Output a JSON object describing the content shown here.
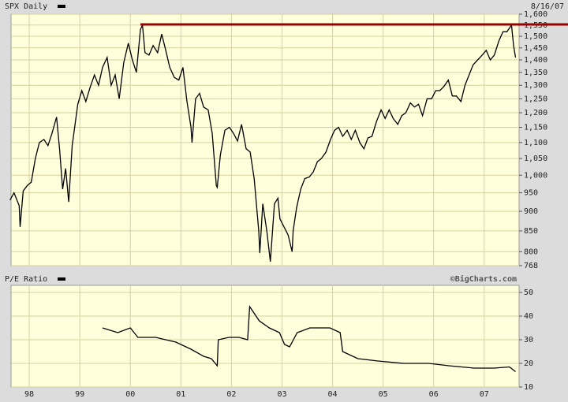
{
  "chart_data": [
    {
      "type": "line",
      "date": "8/16/07",
      "log_scale": true,
      "grid": true,
      "x": [
        1997.62,
        1997.7,
        1997.8,
        1997.82,
        1997.88,
        1997.96,
        1998.04,
        1998.12,
        1998.2,
        1998.29,
        1998.37,
        1998.45,
        1998.54,
        1998.6,
        1998.66,
        1998.72,
        1998.78,
        1998.85,
        1998.96,
        1999.04,
        1999.12,
        1999.2,
        1999.29,
        1999.37,
        1999.45,
        1999.54,
        1999.62,
        1999.7,
        1999.78,
        1999.87,
        1999.96,
        2000.04,
        2000.12,
        2000.2,
        2000.24,
        2000.29,
        2000.37,
        2000.45,
        2000.54,
        2000.62,
        2000.7,
        2000.78,
        2000.87,
        2000.96,
        2001.04,
        2001.12,
        2001.2,
        2001.22,
        2001.29,
        2001.37,
        2001.45,
        2001.54,
        2001.62,
        2001.7,
        2001.72,
        2001.78,
        2001.87,
        2001.96,
        2002.04,
        2002.12,
        2002.2,
        2002.29,
        2002.37,
        2002.45,
        2002.54,
        2002.56,
        2002.62,
        2002.7,
        2002.77,
        2002.85,
        2002.92,
        2002.96,
        2003.04,
        2003.12,
        2003.2,
        2003.22,
        2003.29,
        2003.37,
        2003.45,
        2003.54,
        2003.62,
        2003.7,
        2003.78,
        2003.87,
        2003.96,
        2004.04,
        2004.12,
        2004.2,
        2004.29,
        2004.37,
        2004.45,
        2004.54,
        2004.62,
        2004.7,
        2004.78,
        2004.87,
        2004.96,
        2005.04,
        2005.12,
        2005.2,
        2005.29,
        2005.37,
        2005.45,
        2005.54,
        2005.62,
        2005.7,
        2005.78,
        2005.87,
        2005.96,
        2006.04,
        2006.12,
        2006.2,
        2006.29,
        2006.37,
        2006.45,
        2006.54,
        2006.62,
        2006.7,
        2006.78,
        2006.87,
        2006.96,
        2007.04,
        2007.12,
        2007.2,
        2007.29,
        2007.37,
        2007.45,
        2007.54,
        2007.58,
        2007.62
      ],
      "series": [
        {
          "name": "SPX Daily",
          "color": "#000000",
          "values": [
            930,
            950,
            915,
            860,
            955,
            970,
            980,
            1050,
            1100,
            1110,
            1090,
            1130,
            1185,
            1080,
            960,
            1020,
            925,
            1090,
            1230,
            1280,
            1240,
            1290,
            1340,
            1300,
            1370,
            1410,
            1300,
            1340,
            1250,
            1390,
            1470,
            1400,
            1350,
            1530,
            1550,
            1430,
            1420,
            1460,
            1430,
            1510,
            1440,
            1370,
            1330,
            1320,
            1370,
            1240,
            1150,
            1100,
            1250,
            1270,
            1220,
            1210,
            1130,
            970,
            965,
            1060,
            1140,
            1150,
            1130,
            1105,
            1160,
            1080,
            1070,
            990,
            850,
            797,
            920,
            850,
            777,
            920,
            935,
            880,
            860,
            840,
            800,
            850,
            910,
            960,
            990,
            995,
            1010,
            1040,
            1050,
            1070,
            1110,
            1140,
            1150,
            1120,
            1140,
            1110,
            1140,
            1100,
            1080,
            1115,
            1120,
            1170,
            1210,
            1180,
            1210,
            1180,
            1160,
            1190,
            1200,
            1235,
            1220,
            1230,
            1190,
            1250,
            1250,
            1280,
            1280,
            1295,
            1320,
            1260,
            1260,
            1240,
            1300,
            1340,
            1380,
            1400,
            1420,
            1440,
            1400,
            1420,
            1480,
            1520,
            1520,
            1550,
            1460,
            1410
          ]
        }
      ],
      "reference_line": {
        "value": 1553,
        "x_start": 2000.2,
        "color": "#990000"
      },
      "xlim": [
        1997.64,
        2007.69
      ],
      "xticks": [
        1998,
        1999,
        2000,
        2001,
        2002,
        2003,
        2004,
        2005,
        2006,
        2007
      ],
      "ylim": [
        768,
        1600
      ],
      "yticks": [
        768,
        800,
        850,
        900,
        950,
        {
          "value": 1000,
          "label": "1,000"
        },
        {
          "value": 1050,
          "label": "1,050"
        },
        {
          "value": 1100,
          "label": "1,100"
        },
        {
          "value": 1150,
          "label": "1,150"
        },
        {
          "value": 1200,
          "label": "1,200"
        },
        {
          "value": 1250,
          "label": "1,250"
        },
        {
          "value": 1300,
          "label": "1,300"
        },
        {
          "value": 1350,
          "label": "1,350"
        },
        {
          "value": 1400,
          "label": "1,400"
        },
        {
          "value": 1450,
          "label": "1,450"
        },
        {
          "value": 1500,
          "label": "1,500"
        },
        {
          "value": 1550,
          "label": "1,550"
        },
        {
          "value": 1600,
          "label": "1,600"
        }
      ]
    },
    {
      "type": "line",
      "source": "©BigCharts.com",
      "log_scale": false,
      "grid": true,
      "x": [
        1999.45,
        1999.75,
        2000.0,
        2000.15,
        2000.5,
        2000.9,
        2001.2,
        2001.45,
        2001.6,
        2001.68,
        2001.72,
        2001.74,
        2001.95,
        2002.15,
        2002.32,
        2002.36,
        2002.55,
        2002.75,
        2002.95,
        2003.05,
        2003.15,
        2003.3,
        2003.55,
        2003.95,
        2004.15,
        2004.2,
        2004.5,
        2004.9,
        2005.4,
        2005.9,
        2006.3,
        2006.8,
        2007.2,
        2007.5,
        2007.62
      ],
      "series": [
        {
          "name": "P/E Ratio",
          "color": "#000000",
          "values": [
            35,
            33,
            35,
            31,
            31,
            29,
            26,
            23,
            22,
            20,
            19,
            30,
            31,
            31,
            30,
            44,
            38,
            35,
            33,
            28,
            27,
            33,
            35,
            35,
            33,
            25,
            22,
            21,
            20,
            20,
            19,
            18,
            18,
            18.5,
            16.5
          ]
        }
      ],
      "xlim": [
        1997.64,
        2007.69
      ],
      "xticks": [
        {
          "value": 1998,
          "label": "98"
        },
        {
          "value": 1999,
          "label": "99"
        },
        {
          "value": 2000,
          "label": "00"
        },
        {
          "value": 2001,
          "label": "01"
        },
        {
          "value": 2002,
          "label": "02"
        },
        {
          "value": 2003,
          "label": "03"
        },
        {
          "value": 2004,
          "label": "04"
        },
        {
          "value": 2005,
          "label": "05"
        },
        {
          "value": 2006,
          "label": "06"
        },
        {
          "value": 2007,
          "label": "07"
        }
      ],
      "ylim": [
        10,
        53
      ],
      "yticks": [
        10,
        20,
        30,
        40,
        50
      ]
    }
  ]
}
